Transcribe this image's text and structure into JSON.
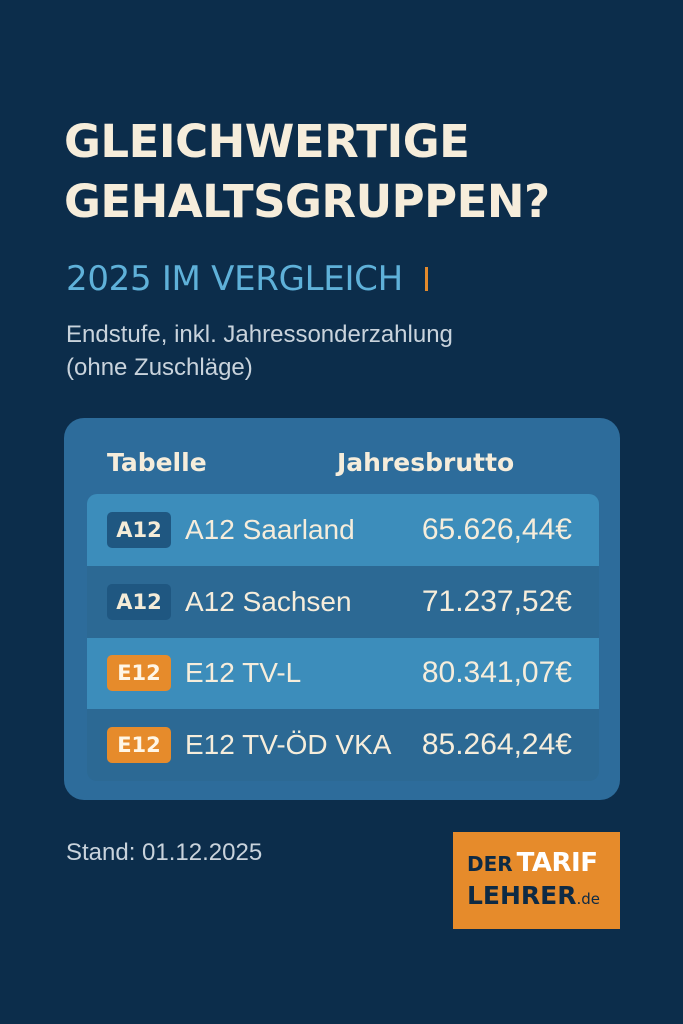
{
  "header": {
    "title_line1": "GLEICHWERTIGE",
    "title_line2": "GEHALTSGRUPPEN?",
    "subtitle": "2025 IM VERGLEICH",
    "note_line1": "Endstufe, inkl. Jahressonderzahlung",
    "note_line2": "(ohne Zuschläge)"
  },
  "table": {
    "col_tabelle": "Tabelle",
    "col_jahresbrutto": "Jahresbrutto",
    "rows": [
      {
        "badge": "A12",
        "badge_color": "#1f5781",
        "name": "A12 Saarland",
        "amount": "65.626,44€"
      },
      {
        "badge": "A12",
        "badge_color": "#1f5781",
        "name": "A12 Sachsen",
        "amount": "71.237,52€"
      },
      {
        "badge": "E12",
        "badge_color": "#e68b2b",
        "name": "E12 TV-L",
        "amount": "80.341,07€"
      },
      {
        "badge": "E12",
        "badge_color": "#e68b2b",
        "name": "E12 TV-ÖD VKA",
        "amount": "85.264,24€"
      }
    ]
  },
  "footer": {
    "stand": "Stand: 01.12.2025"
  },
  "logo": {
    "part1": "DER",
    "part2": "TARIF",
    "part3": "LEHRER",
    "part4": ".de"
  },
  "colors": {
    "background": "#0c2d4b",
    "accent_orange": "#e68b2b",
    "accent_blue": "#5fb1d9",
    "panel": "#2d6c9b"
  }
}
